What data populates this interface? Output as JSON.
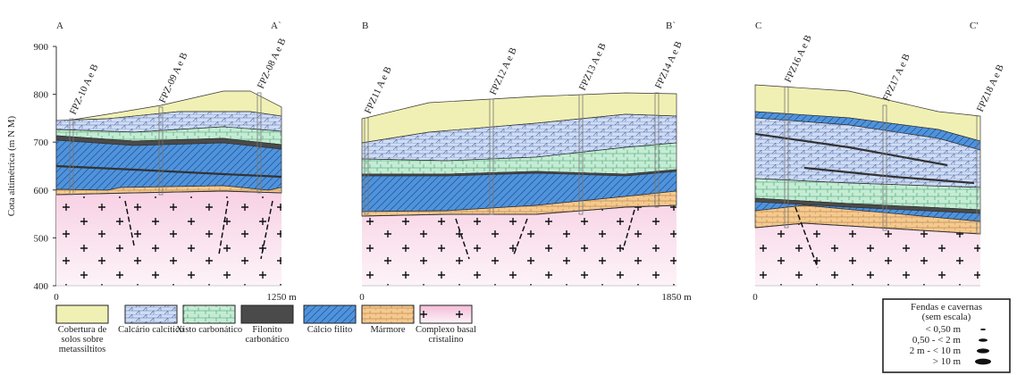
{
  "y_axis": {
    "label": "Cota altimétrica (m N M)",
    "ticks": [
      900,
      800,
      700,
      600,
      500,
      400
    ]
  },
  "panels": [
    {
      "left_label": "A",
      "right_label": "A`",
      "x_start": "0",
      "x_end": "1250 m",
      "wells": [
        "FPZ-10 A e B",
        "FPZ-09 A e B",
        "FPZ-08 A e B"
      ]
    },
    {
      "left_label": "B",
      "right_label": "B`",
      "x_start": "0",
      "x_end": "1850 m",
      "wells": [
        "FPZ11 A e B",
        "FPZ12 A e B",
        "FPZ13 A e B",
        "FPZ14 A e B"
      ]
    },
    {
      "left_label": "C",
      "right_label": "C'",
      "x_start": "0",
      "wells": [
        "FPZ16 A e B",
        "FPZ17 A e B",
        "FPZ18 A e B"
      ]
    }
  ],
  "legend": [
    "Cobertura de solos sobre metassiltitos",
    "Calcário calcítico",
    "Xisto carbonático",
    "Filonito carbonático",
    "Cálcio filito",
    "Mármore",
    "Complexo basal cristalino"
  ],
  "cavities": {
    "title": "Fendas e cavernas",
    "subtitle": "(sem escala)",
    "items": [
      "< 0,50 m",
      "0,50 - < 2 m",
      "2 m - < 10 m",
      "> 10 m"
    ]
  }
}
